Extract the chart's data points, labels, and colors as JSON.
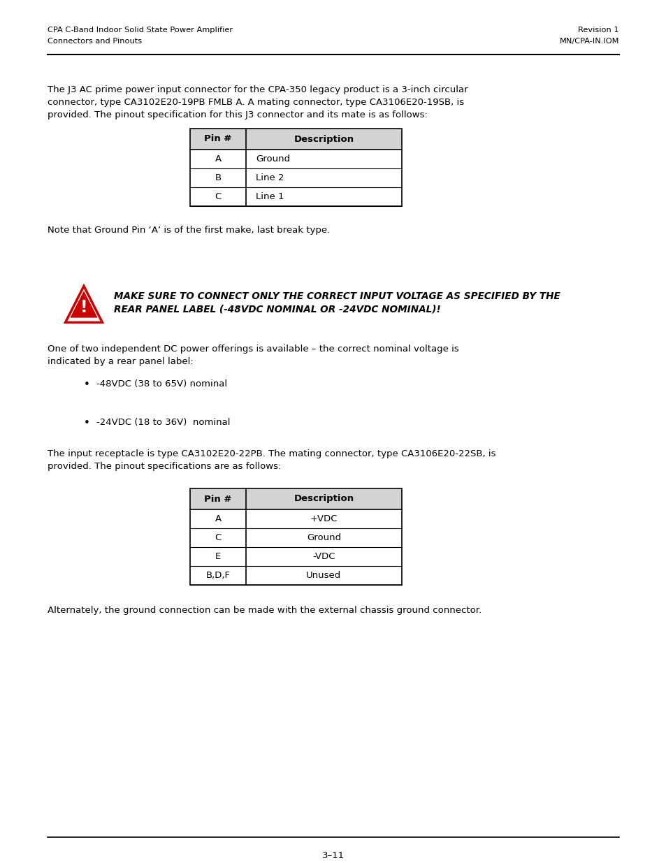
{
  "header_left_line1": "CPA C-Band Indoor Solid State Power Amplifier",
  "header_left_line2": "Connectors and Pinouts",
  "header_right_line1": "Revision 1",
  "header_right_line2": "MN/CPA-IN.IOM",
  "footer_text": "3–11",
  "table1_headers": [
    "Pin #",
    "Description"
  ],
  "table1_rows": [
    [
      "A",
      "Ground"
    ],
    [
      "B",
      "Line 2"
    ],
    [
      "C",
      "Line 1"
    ]
  ],
  "note_text": "Note that Ground Pin ‘A’ is of the first make, last break type.",
  "warning_text_line1": "MAKE SURE TO CONNECT ONLY THE CORRECT INPUT VOLTAGE AS SPECIFIED BY THE",
  "warning_text_line2": "REAR PANEL LABEL (-48VDC NOMINAL OR -24VDC NOMINAL)!",
  "bullet1": "-48VDC (38 to 65V) nominal",
  "bullet2": "-24VDC (18 to 36V)  nominal",
  "table2_headers": [
    "Pin #",
    "Description"
  ],
  "table2_rows": [
    [
      "A",
      "+VDC"
    ],
    [
      "C",
      "Ground"
    ],
    [
      "E",
      "-VDC"
    ],
    [
      "B,D,F",
      "Unused"
    ]
  ],
  "para4": "Alternately, the ground connection can be made with the external chassis ground connector.",
  "bg_color": "#ffffff",
  "text_color": "#000000",
  "header_gray": "#d3d3d3",
  "p1_lines": [
    "The J3 AC prime power input connector for the CPA-350 legacy product is a 3-inch circular",
    "connector, type CA3102E20-19PB FMLB A. A mating connector, type CA3106E20-19SB, is",
    "provided. The pinout specification for this J3 connector and its mate is as follows:"
  ],
  "p3_lines": [
    "The input receptacle is type CA3102E20-22PB. The mating connector, type CA3106E20-22SB, is",
    "provided. The pinout specifications are as follows:"
  ],
  "p2_lines": [
    "One of two independent DC power offerings is available – the correct nominal voltage is",
    "indicated by a rear panel label:"
  ]
}
